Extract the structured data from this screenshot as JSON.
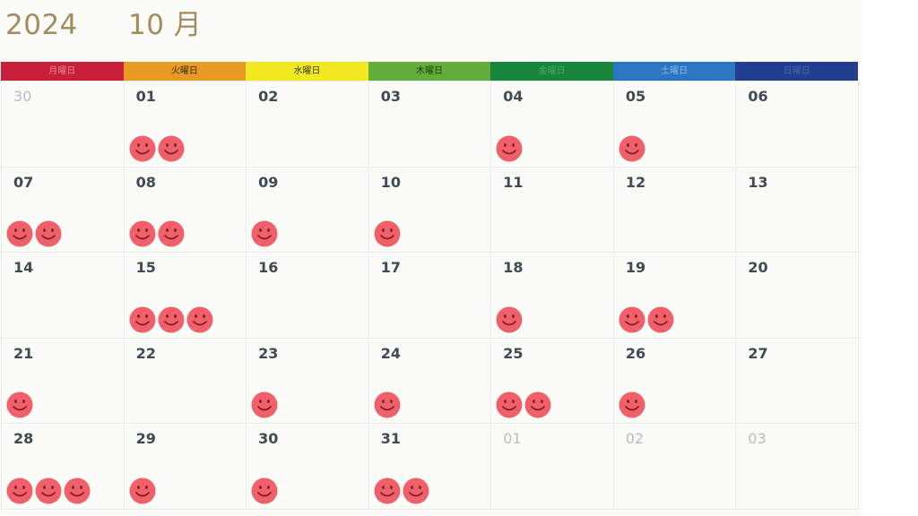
{
  "header": {
    "year": "2024",
    "month": "10 月"
  },
  "weekdays": [
    {
      "label": "月曜日",
      "color": "#c8203a",
      "text_color": "#e88a95"
    },
    {
      "label": "火曜日",
      "color": "#e79a24",
      "text_color": "#3a2a10"
    },
    {
      "label": "水曜日",
      "color": "#f2e921",
      "text_color": "#3a3a10"
    },
    {
      "label": "木曜日",
      "color": "#63ae3b",
      "text_color": "#1a3a10"
    },
    {
      "label": "金曜日",
      "color": "#17863c",
      "text_color": "#4fa86b"
    },
    {
      "label": "土曜日",
      "color": "#2b76c2",
      "text_color": "#90b9e3"
    },
    {
      "label": "日曜日",
      "color": "#223f8f",
      "text_color": "#4c64a8"
    }
  ],
  "colors": {
    "smiley_fill": "#f0606a",
    "smiley_face": "#7a1d24",
    "date_text": "#3f4a52",
    "other_month_text": "#b8bdc2"
  },
  "days": [
    {
      "label": "30",
      "other_month": true,
      "smileys": 0
    },
    {
      "label": "01",
      "smileys": 2
    },
    {
      "label": "02",
      "smileys": 0
    },
    {
      "label": "03",
      "smileys": 0
    },
    {
      "label": "04",
      "smileys": 1
    },
    {
      "label": "05",
      "smileys": 1
    },
    {
      "label": "06",
      "smileys": 0
    },
    {
      "label": "07",
      "smileys": 2
    },
    {
      "label": "08",
      "smileys": 2
    },
    {
      "label": "09",
      "smileys": 1
    },
    {
      "label": "10",
      "smileys": 1
    },
    {
      "label": "11",
      "smileys": 0
    },
    {
      "label": "12",
      "smileys": 0
    },
    {
      "label": "13",
      "smileys": 0
    },
    {
      "label": "14",
      "smileys": 0
    },
    {
      "label": "15",
      "smileys": 3
    },
    {
      "label": "16",
      "smileys": 0
    },
    {
      "label": "17",
      "smileys": 0
    },
    {
      "label": "18",
      "smileys": 1
    },
    {
      "label": "19",
      "smileys": 2
    },
    {
      "label": "20",
      "smileys": 0
    },
    {
      "label": "21",
      "smileys": 1
    },
    {
      "label": "22",
      "smileys": 0
    },
    {
      "label": "23",
      "smileys": 1
    },
    {
      "label": "24",
      "smileys": 1
    },
    {
      "label": "25",
      "smileys": 2
    },
    {
      "label": "26",
      "smileys": 1
    },
    {
      "label": "27",
      "smileys": 0
    },
    {
      "label": "28",
      "smileys": 3
    },
    {
      "label": "29",
      "smileys": 1
    },
    {
      "label": "30",
      "smileys": 1
    },
    {
      "label": "31",
      "smileys": 2
    },
    {
      "label": "01",
      "other_month": true,
      "smileys": 0
    },
    {
      "label": "02",
      "other_month": true,
      "smileys": 0
    },
    {
      "label": "03",
      "other_month": true,
      "smileys": 0
    }
  ]
}
